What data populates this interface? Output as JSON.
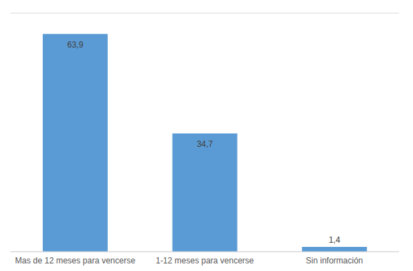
{
  "chart_data": {
    "type": "bar",
    "categories": [
      "Mas de 12 meses para vencerse",
      "1-12 meses para vencerse",
      "Sin información"
    ],
    "values": [
      63.9,
      34.7,
      1.4
    ],
    "value_labels": [
      "63,9",
      "34,7",
      "1,4"
    ],
    "color": "#5b9bd5",
    "ylim": [
      0,
      70
    ],
    "yticks": [
      0,
      10,
      20,
      30,
      40,
      50,
      60,
      70
    ],
    "grid": true,
    "data_labels": true,
    "tick_labels": "x"
  }
}
